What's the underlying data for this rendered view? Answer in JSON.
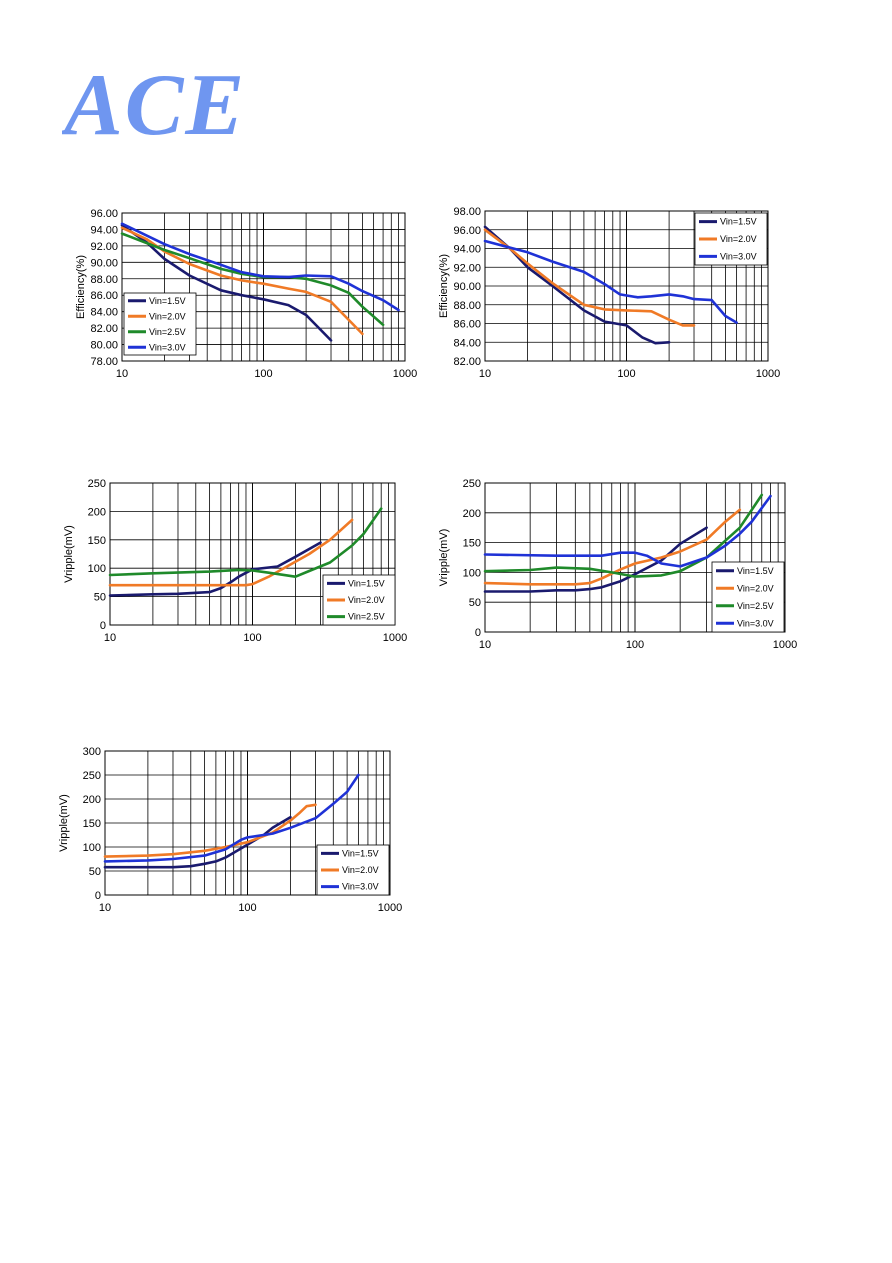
{
  "logo": {
    "text": "ACE",
    "color": "#6f96f0"
  },
  "colors": {
    "Vin=1.5V": "#1a1a6e",
    "Vin=2.0V": "#f07a26",
    "Vin=2.5V": "#1f8a2a",
    "Vin=3.0V": "#1f32d6"
  },
  "chart_data": [
    {
      "id": "c1",
      "type": "line",
      "xscale": "log",
      "xlim": [
        10,
        1000
      ],
      "ylim": [
        78,
        96
      ],
      "yticks": [
        "78.00",
        "80.00",
        "82.00",
        "84.00",
        "86.00",
        "88.00",
        "90.00",
        "92.00",
        "94.00",
        "96.00"
      ],
      "xticks": [
        "10",
        "100",
        "1000"
      ],
      "ylabel": "Efficiency(%)",
      "legend_pos": "bottom-left",
      "series": [
        {
          "name": "Vin=1.5V",
          "points": [
            [
              10,
              94.5
            ],
            [
              15,
              92.4
            ],
            [
              20,
              90.4
            ],
            [
              30,
              88.4
            ],
            [
              50,
              86.6
            ],
            [
              70,
              86.0
            ],
            [
              100,
              85.5
            ],
            [
              150,
              84.8
            ],
            [
              200,
              83.6
            ],
            [
              300,
              80.5
            ]
          ]
        },
        {
          "name": "Vin=2.0V",
          "points": [
            [
              10,
              94.2
            ],
            [
              15,
              92.8
            ],
            [
              20,
              91.3
            ],
            [
              30,
              89.8
            ],
            [
              50,
              88.4
            ],
            [
              70,
              87.8
            ],
            [
              100,
              87.4
            ],
            [
              150,
              86.8
            ],
            [
              200,
              86.4
            ],
            [
              300,
              85.2
            ],
            [
              400,
              83.0
            ],
            [
              500,
              81.3
            ]
          ]
        },
        {
          "name": "Vin=2.5V",
          "points": [
            [
              10,
              93.5
            ],
            [
              20,
              91.5
            ],
            [
              30,
              90.5
            ],
            [
              50,
              89.2
            ],
            [
              70,
              88.6
            ],
            [
              100,
              88.2
            ],
            [
              150,
              88.2
            ],
            [
              200,
              88.0
            ],
            [
              300,
              87.2
            ],
            [
              400,
              86.3
            ],
            [
              500,
              84.6
            ],
            [
              700,
              82.4
            ]
          ]
        },
        {
          "name": "Vin=3.0V",
          "points": [
            [
              10,
              94.7
            ],
            [
              20,
              92.2
            ],
            [
              30,
              91.0
            ],
            [
              50,
              89.7
            ],
            [
              70,
              88.8
            ],
            [
              100,
              88.3
            ],
            [
              150,
              88.2
            ],
            [
              200,
              88.4
            ],
            [
              300,
              88.3
            ],
            [
              400,
              87.4
            ],
            [
              500,
              86.5
            ],
            [
              700,
              85.4
            ],
            [
              900,
              84.2
            ]
          ]
        }
      ]
    },
    {
      "id": "c2",
      "type": "line",
      "xscale": "log",
      "xlim": [
        10,
        1000
      ],
      "ylim": [
        82,
        98
      ],
      "yticks": [
        "82.00",
        "84.00",
        "86.00",
        "88.00",
        "90.00",
        "92.00",
        "94.00",
        "96.00",
        "98.00"
      ],
      "xticks": [
        "10",
        "100",
        "1000"
      ],
      "ylabel": "Efficiency(%)",
      "legend_pos": "top-right",
      "series": [
        {
          "name": "Vin=1.5V",
          "points": [
            [
              10,
              96.3
            ],
            [
              15,
              94.0
            ],
            [
              20,
              92.0
            ],
            [
              30,
              90.0
            ],
            [
              50,
              87.4
            ],
            [
              70,
              86.2
            ],
            [
              100,
              85.8
            ],
            [
              130,
              84.5
            ],
            [
              160,
              83.9
            ],
            [
              200,
              84.0
            ]
          ]
        },
        {
          "name": "Vin=2.0V",
          "points": [
            [
              10,
              96.0
            ],
            [
              15,
              94.0
            ],
            [
              20,
              92.4
            ],
            [
              30,
              90.3
            ],
            [
              50,
              88.0
            ],
            [
              70,
              87.5
            ],
            [
              100,
              87.4
            ],
            [
              150,
              87.3
            ],
            [
              200,
              86.4
            ],
            [
              250,
              85.8
            ],
            [
              300,
              85.8
            ]
          ]
        },
        {
          "name": "Vin=3.0V",
          "points": [
            [
              10,
              94.8
            ],
            [
              20,
              93.6
            ],
            [
              30,
              92.6
            ],
            [
              50,
              91.5
            ],
            [
              70,
              90.2
            ],
            [
              90,
              89.1
            ],
            [
              120,
              88.8
            ],
            [
              150,
              88.9
            ],
            [
              200,
              89.1
            ],
            [
              250,
              88.9
            ],
            [
              300,
              88.6
            ],
            [
              400,
              88.5
            ],
            [
              500,
              86.8
            ],
            [
              600,
              86.1
            ]
          ]
        }
      ]
    },
    {
      "id": "c3",
      "type": "line",
      "xscale": "log",
      "xlim": [
        10,
        1000
      ],
      "ylim": [
        0,
        250
      ],
      "yticks": [
        "0",
        "50",
        "100",
        "150",
        "200",
        "250"
      ],
      "xticks": [
        "10",
        "100",
        "1000"
      ],
      "ylabel": "Vripple(mV)",
      "legend_pos": "bottom-right",
      "series": [
        {
          "name": "Vin=1.5V",
          "points": [
            [
              10,
              52
            ],
            [
              20,
              54
            ],
            [
              30,
              55
            ],
            [
              50,
              58
            ],
            [
              60,
              65
            ],
            [
              70,
              75
            ],
            [
              80,
              85
            ],
            [
              100,
              98
            ],
            [
              150,
              103
            ],
            [
              200,
              120
            ],
            [
              300,
              145
            ]
          ]
        },
        {
          "name": "Vin=2.0V",
          "points": [
            [
              10,
              70
            ],
            [
              30,
              70
            ],
            [
              50,
              70
            ],
            [
              70,
              70
            ],
            [
              90,
              70
            ],
            [
              100,
              72
            ],
            [
              130,
              85
            ],
            [
              180,
              105
            ],
            [
              250,
              125
            ],
            [
              350,
              150
            ],
            [
              500,
              185
            ]
          ]
        },
        {
          "name": "Vin=2.5V",
          "points": [
            [
              10,
              88
            ],
            [
              20,
              91
            ],
            [
              50,
              94
            ],
            [
              80,
              97
            ],
            [
              100,
              96
            ],
            [
              130,
              92
            ],
            [
              200,
              85
            ],
            [
              250,
              95
            ],
            [
              350,
              110
            ],
            [
              500,
              140
            ],
            [
              600,
              160
            ],
            [
              800,
              205
            ]
          ]
        }
      ]
    },
    {
      "id": "c4",
      "type": "line",
      "xscale": "log",
      "xlim": [
        10,
        1000
      ],
      "ylim": [
        0,
        250
      ],
      "yticks": [
        "0",
        "50",
        "100",
        "150",
        "200",
        "250"
      ],
      "xticks": [
        "10",
        "100",
        "1000"
      ],
      "ylabel": "Vripple(mV)",
      "legend_pos": "bottom-right",
      "series": [
        {
          "name": "Vin=1.5V",
          "points": [
            [
              10,
              68
            ],
            [
              20,
              68
            ],
            [
              30,
              70
            ],
            [
              40,
              70
            ],
            [
              50,
              72
            ],
            [
              60,
              75
            ],
            [
              80,
              85
            ],
            [
              100,
              97
            ],
            [
              150,
              120
            ],
            [
              200,
              148
            ],
            [
              300,
              175
            ]
          ]
        },
        {
          "name": "Vin=2.0V",
          "points": [
            [
              10,
              82
            ],
            [
              20,
              80
            ],
            [
              30,
              80
            ],
            [
              40,
              80
            ],
            [
              50,
              82
            ],
            [
              60,
              90
            ],
            [
              80,
              105
            ],
            [
              100,
              115
            ],
            [
              150,
              125
            ],
            [
              200,
              135
            ],
            [
              300,
              155
            ],
            [
              400,
              185
            ],
            [
              500,
              205
            ]
          ]
        },
        {
          "name": "Vin=2.5V",
          "points": [
            [
              10,
              102
            ],
            [
              20,
              104
            ],
            [
              30,
              108
            ],
            [
              50,
              106
            ],
            [
              70,
              100
            ],
            [
              100,
              93
            ],
            [
              150,
              95
            ],
            [
              200,
              102
            ],
            [
              300,
              125
            ],
            [
              500,
              175
            ],
            [
              700,
              230
            ]
          ]
        },
        {
          "name": "Vin=3.0V",
          "points": [
            [
              10,
              130
            ],
            [
              30,
              128
            ],
            [
              60,
              128
            ],
            [
              80,
              133
            ],
            [
              100,
              133
            ],
            [
              120,
              128
            ],
            [
              150,
              115
            ],
            [
              200,
              110
            ],
            [
              300,
              125
            ],
            [
              400,
              145
            ],
            [
              500,
              165
            ],
            [
              600,
              185
            ],
            [
              800,
              228
            ]
          ]
        }
      ]
    },
    {
      "id": "c5",
      "type": "line",
      "xscale": "log",
      "xlim": [
        10,
        1000
      ],
      "ylim": [
        0,
        300
      ],
      "yticks": [
        "0",
        "50",
        "100",
        "150",
        "200",
        "250",
        "300"
      ],
      "xticks": [
        "10",
        "100",
        "1000"
      ],
      "ylabel": "Vripple(mV)",
      "legend_pos": "bottom-right",
      "series": [
        {
          "name": "Vin=1.5V",
          "points": [
            [
              10,
              58
            ],
            [
              20,
              58
            ],
            [
              30,
              58
            ],
            [
              40,
              60
            ],
            [
              50,
              65
            ],
            [
              60,
              70
            ],
            [
              70,
              78
            ],
            [
              80,
              88
            ],
            [
              100,
              105
            ],
            [
              130,
              125
            ],
            [
              150,
              140
            ],
            [
              200,
              162
            ]
          ]
        },
        {
          "name": "Vin=2.0V",
          "points": [
            [
              10,
              80
            ],
            [
              20,
              82
            ],
            [
              30,
              85
            ],
            [
              50,
              92
            ],
            [
              70,
              100
            ],
            [
              100,
              110
            ],
            [
              150,
              130
            ],
            [
              200,
              155
            ],
            [
              230,
              170
            ],
            [
              260,
              185
            ],
            [
              300,
              188
            ]
          ]
        },
        {
          "name": "Vin=3.0V",
          "points": [
            [
              10,
              70
            ],
            [
              20,
              72
            ],
            [
              30,
              75
            ],
            [
              50,
              82
            ],
            [
              70,
              95
            ],
            [
              90,
              115
            ],
            [
              100,
              120
            ],
            [
              150,
              128
            ],
            [
              200,
              140
            ],
            [
              300,
              160
            ],
            [
              400,
              190
            ],
            [
              500,
              215
            ],
            [
              600,
              250
            ]
          ]
        }
      ]
    }
  ]
}
